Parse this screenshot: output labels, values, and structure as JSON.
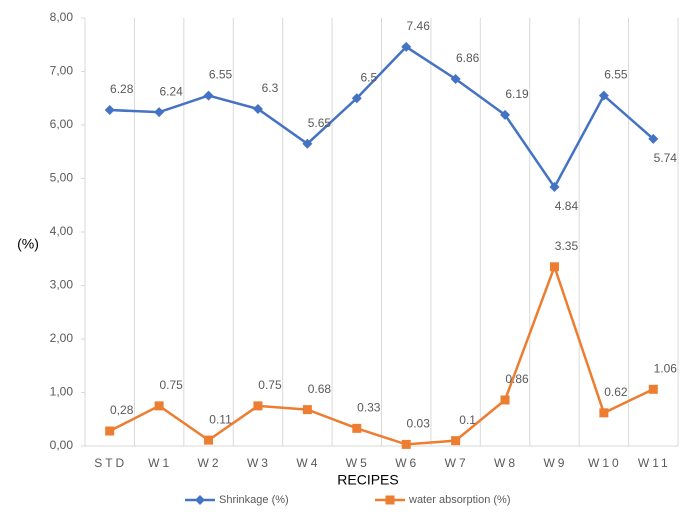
{
  "chart_data": {
    "type": "line",
    "categories": [
      "STD",
      "W1",
      "W2",
      "W3",
      "W4",
      "W5",
      "W6",
      "W7",
      "W8",
      "W9",
      "W10",
      "W11"
    ],
    "series": [
      {
        "name": "Shrinkage (%)",
        "color": "#4472c4",
        "marker": "diamond",
        "values": [
          6.28,
          6.24,
          6.55,
          6.3,
          5.65,
          6.5,
          7.46,
          6.86,
          6.19,
          4.84,
          6.55,
          5.74
        ]
      },
      {
        "name": "water absorption (%)",
        "color": "#ed7d31",
        "marker": "square",
        "values": [
          0.28,
          0.75,
          0.11,
          0.75,
          0.68,
          0.33,
          0.03,
          0.1,
          0.86,
          3.35,
          0.62,
          1.06
        ],
        "value_labels": [
          "0,28",
          "0.75",
          "0.11",
          "0.75",
          "0.68",
          "0.33",
          "0.03",
          "0.1",
          "0.86",
          "3.35",
          "0.62",
          "1.06"
        ]
      }
    ],
    "ylabel": "(%)",
    "xlabel": "RECIPES",
    "ylim": [
      0,
      8
    ],
    "yticks": [
      {
        "value": 0,
        "label": "0,00"
      },
      {
        "value": 1,
        "label": "1,00"
      },
      {
        "value": 2,
        "label": "2,00"
      },
      {
        "value": 3,
        "label": "3,00"
      },
      {
        "value": 4,
        "label": "4,00"
      },
      {
        "value": 5,
        "label": "5,00"
      },
      {
        "value": 6,
        "label": "6,00"
      },
      {
        "value": 7,
        "label": "7,00"
      },
      {
        "value": 8,
        "label": "8,00"
      }
    ],
    "legend": "bottom"
  }
}
